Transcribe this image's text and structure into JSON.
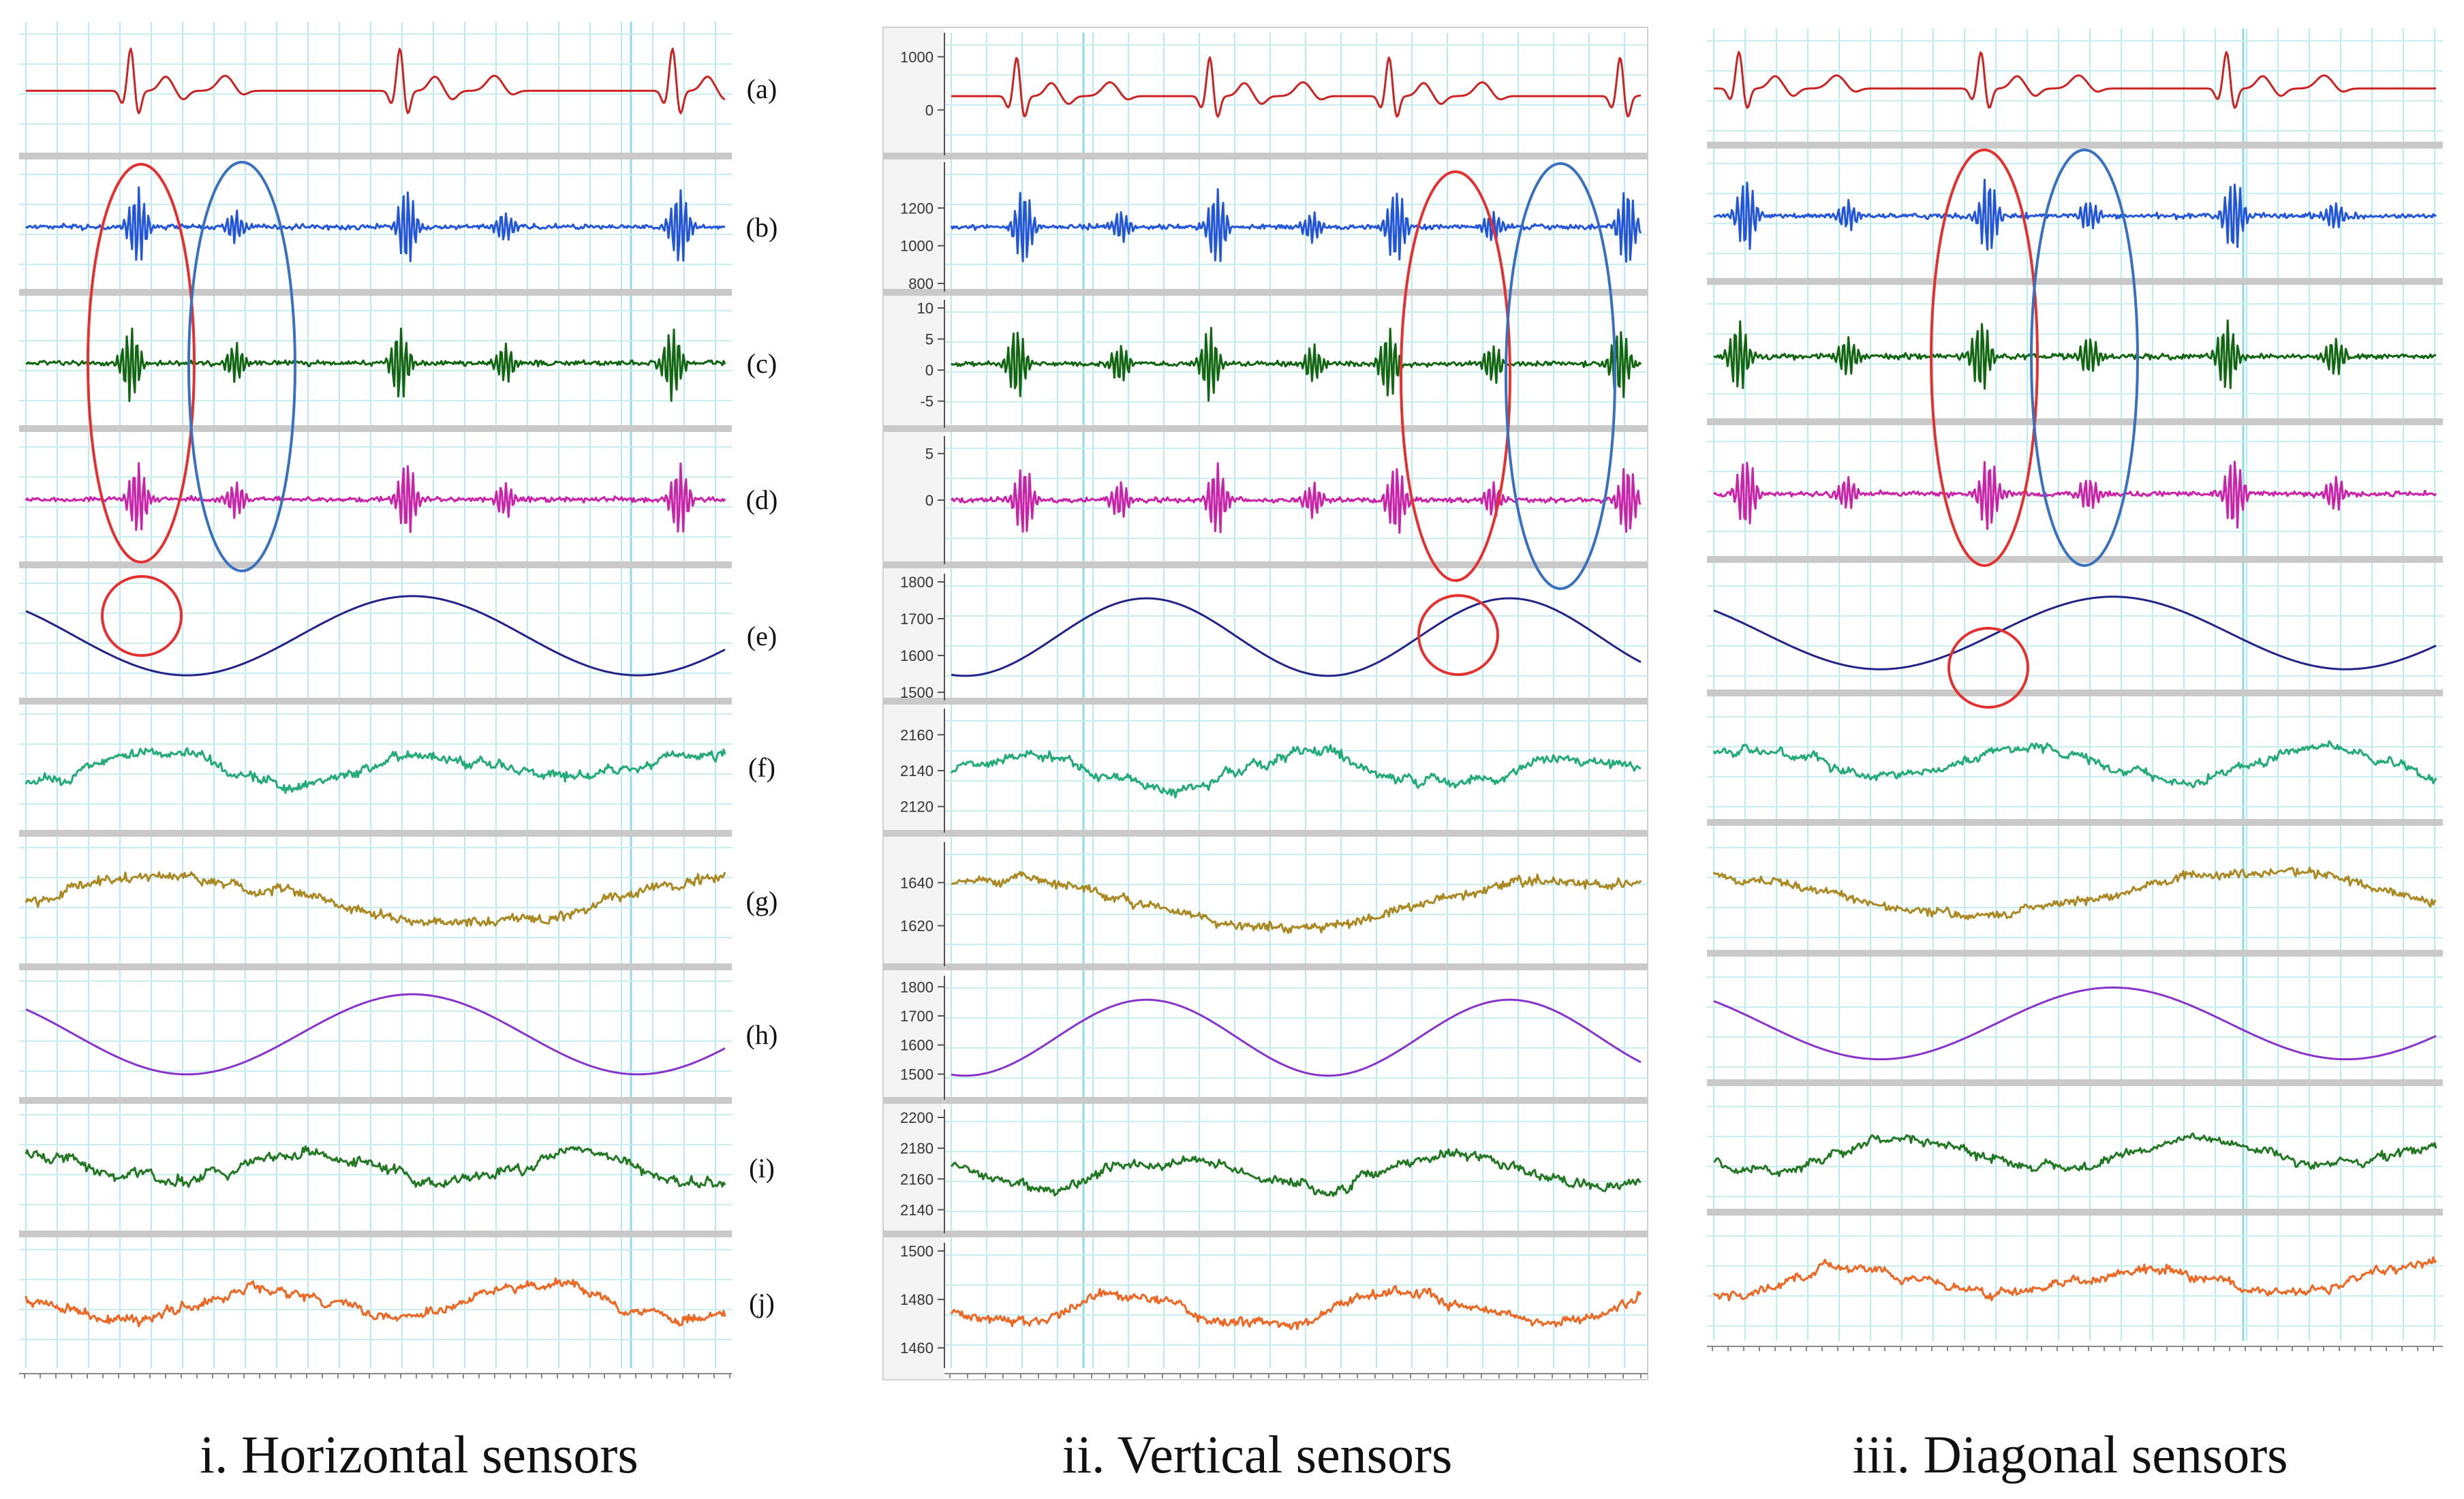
{
  "figure": {
    "panels": [
      {
        "id": "horizontal",
        "caption": "i. Horizontal sensors",
        "has_axis": false,
        "has_labels": true
      },
      {
        "id": "vertical",
        "caption": "ii. Vertical sensors",
        "has_axis": true,
        "has_labels": false
      },
      {
        "id": "diagonal",
        "caption": "iii. Diagonal sensors",
        "has_axis": false,
        "has_labels": false
      }
    ],
    "row_labels": [
      "(a)",
      "(b)",
      "(c)",
      "(d)",
      "(e)",
      "(f)",
      "(g)",
      "(h)",
      "(i)",
      "(j)"
    ],
    "row_colors": [
      "#cc2222",
      "#2255dd",
      "#116611",
      "#cc22aa",
      "#222288",
      "#22aa77",
      "#aa8822",
      "#8833cc",
      "#227722",
      "#ee6622"
    ],
    "annotation_colors": {
      "red": "#e53030",
      "blue": "#3a70c0"
    }
  },
  "chart_data": [
    {
      "type": "line",
      "title": "i. Horizontal sensors",
      "xlabel": "",
      "ylabel": "",
      "series": [
        {
          "name": "(a)",
          "signal": "ecg-like",
          "peaks": 3
        },
        {
          "name": "(b)",
          "signal": "spiky"
        },
        {
          "name": "(c)",
          "signal": "spiky"
        },
        {
          "name": "(d)",
          "signal": "spiky"
        },
        {
          "name": "(e)",
          "signal": "sine",
          "cycles": 1.5
        },
        {
          "name": "(f)",
          "signal": "noisy"
        },
        {
          "name": "(g)",
          "signal": "noisy-wave"
        },
        {
          "name": "(h)",
          "signal": "sine",
          "cycles": 1.5
        },
        {
          "name": "(i)",
          "signal": "noisy"
        },
        {
          "name": "(j)",
          "signal": "noisy"
        }
      ]
    },
    {
      "type": "line",
      "title": "ii. Vertical sensors",
      "xlabel": "",
      "ylabel": "",
      "series": [
        {
          "name": "(a)",
          "ticks": [
            "1000",
            "0"
          ],
          "ylim": [
            -700,
            1300
          ]
        },
        {
          "name": "(b)",
          "ticks": [
            "1200",
            "1000",
            "800"
          ],
          "ylim": [
            800,
            1400
          ]
        },
        {
          "name": "(c)",
          "ticks": [
            "10",
            "5",
            "0",
            "-5"
          ],
          "ylim": [
            -8,
            10
          ]
        },
        {
          "name": "(d)",
          "ticks": [
            "5",
            "0"
          ],
          "ylim": [
            -6,
            6
          ]
        },
        {
          "name": "(e)",
          "ticks": [
            "1800",
            "1700",
            "1600",
            "1500"
          ],
          "ylim": [
            1500,
            1800
          ]
        },
        {
          "name": "(f)",
          "ticks": [
            "2160",
            "2140",
            "2120"
          ],
          "ylim": [
            2110,
            2170
          ]
        },
        {
          "name": "(g)",
          "ticks": [
            "1640",
            "1620"
          ],
          "ylim": [
            1605,
            1655
          ]
        },
        {
          "name": "(h)",
          "ticks": [
            "1800",
            "1700",
            "1600",
            "1500"
          ],
          "ylim": [
            1440,
            1810
          ]
        },
        {
          "name": "(i)",
          "ticks": [
            "2200",
            "2180",
            "2160",
            "2140"
          ],
          "ylim": [
            2130,
            2200
          ]
        },
        {
          "name": "(j)",
          "ticks": [
            "1500",
            "1480",
            "1460"
          ],
          "ylim": [
            1455,
            1500
          ]
        }
      ]
    },
    {
      "type": "line",
      "title": "iii. Diagonal sensors",
      "xlabel": "",
      "ylabel": "",
      "series": [
        {
          "name": "(a)"
        },
        {
          "name": "(b)"
        },
        {
          "name": "(c)"
        },
        {
          "name": "(d)"
        },
        {
          "name": "(e)"
        },
        {
          "name": "(f)"
        },
        {
          "name": "(g)"
        },
        {
          "name": "(h)"
        },
        {
          "name": "(i)"
        },
        {
          "name": "(j)"
        }
      ]
    }
  ]
}
